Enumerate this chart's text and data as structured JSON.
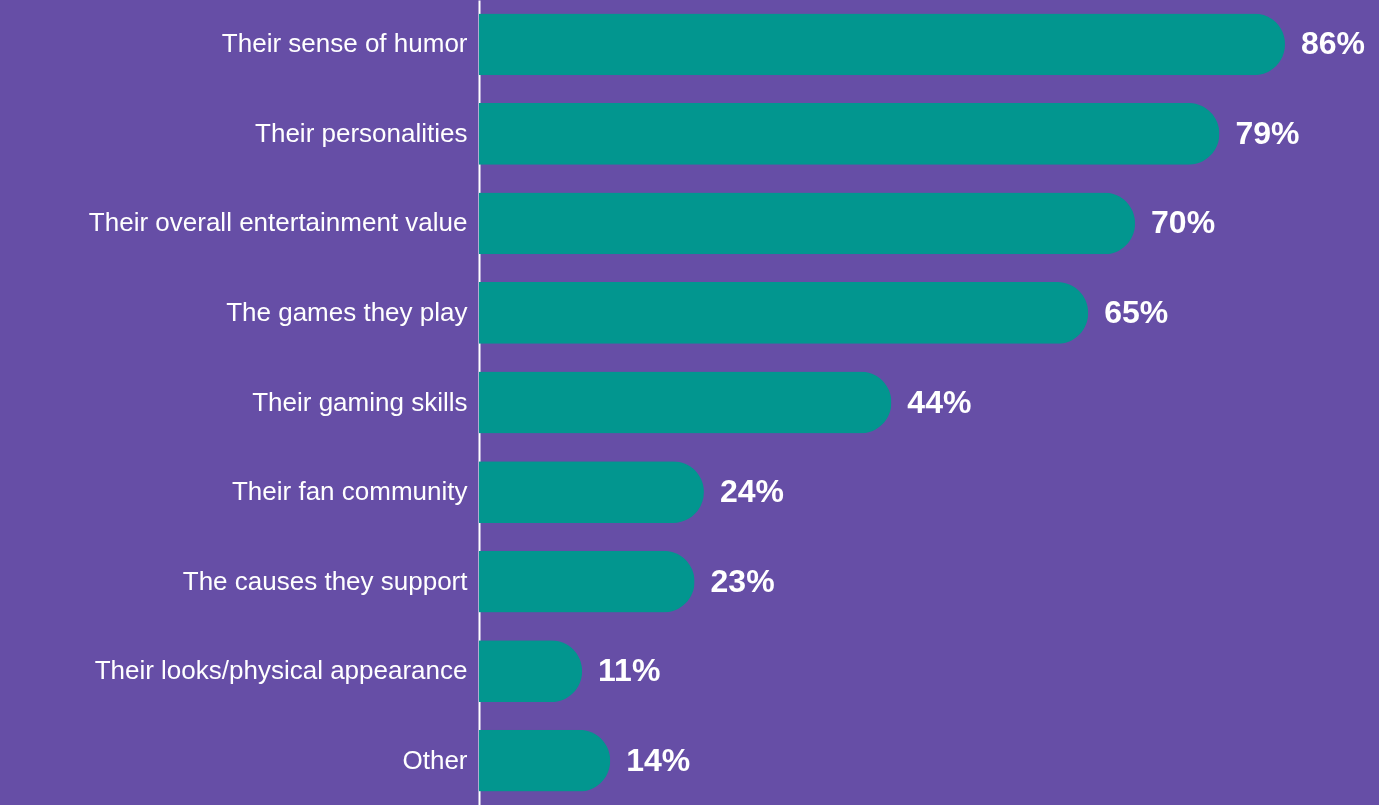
{
  "chart_data": {
    "type": "bar",
    "orientation": "horizontal",
    "categories": [
      "Their sense of humor",
      "Their personalities",
      "Their overall entertainment value",
      "The games they play",
      "Their gaming skills",
      "Their fan community",
      "The causes they support",
      "Their looks/physical appearance",
      "Other"
    ],
    "values": [
      86,
      79,
      70,
      65,
      44,
      24,
      23,
      11,
      14
    ],
    "value_labels": [
      "86%",
      "79%",
      "70%",
      "65%",
      "44%",
      "24%",
      "23%",
      "11%",
      "14%"
    ],
    "color": "#02968f"
  }
}
